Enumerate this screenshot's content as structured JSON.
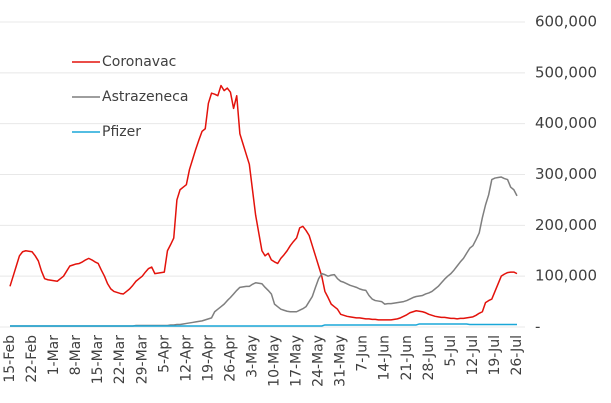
{
  "chart_data": {
    "type": "line",
    "categories": [
      "15-Feb",
      null,
      null,
      null,
      null,
      null,
      null,
      "22-Feb",
      null,
      null,
      null,
      null,
      null,
      null,
      "1-Mar",
      null,
      null,
      null,
      null,
      null,
      null,
      "8-Mar",
      null,
      null,
      null,
      null,
      null,
      null,
      "15-Mar",
      null,
      null,
      null,
      null,
      null,
      null,
      "22-Mar",
      null,
      null,
      null,
      null,
      null,
      null,
      "29-Mar",
      null,
      null,
      null,
      null,
      null,
      null,
      "5-Apr",
      null,
      null,
      null,
      null,
      null,
      null,
      "12-Apr",
      null,
      null,
      null,
      null,
      null,
      null,
      "19-Apr",
      null,
      null,
      null,
      null,
      null,
      null,
      "26-Apr",
      null,
      null,
      null,
      null,
      null,
      null,
      "3-May",
      null,
      null,
      null,
      null,
      null,
      null,
      "10-May",
      null,
      null,
      null,
      null,
      null,
      null,
      "17-May",
      null,
      null,
      null,
      null,
      null,
      null,
      "24-May",
      null,
      null,
      null,
      null,
      null,
      null,
      "31-May",
      null,
      null,
      null,
      null,
      null,
      null,
      "7-Jun",
      null,
      null,
      null,
      null,
      null,
      null,
      "14-Jun",
      null,
      null,
      null,
      null,
      null,
      null,
      "21-Jun",
      null,
      null,
      null,
      null,
      null,
      null,
      "28-Jun",
      null,
      null,
      null,
      null,
      null,
      null,
      "5-Jul",
      null,
      null,
      null,
      null,
      null,
      null,
      "12-Jul",
      null,
      null,
      null,
      null,
      null,
      null,
      "19-Jul",
      null,
      null,
      null,
      null,
      null,
      null,
      "26-Jul"
    ],
    "series": [
      {
        "name": "Coronavac",
        "color": "#e3120b",
        "values": [
          80000,
          100000,
          120000,
          140000,
          148000,
          150000,
          149000,
          148000,
          140000,
          130000,
          110000,
          95000,
          93000,
          92000,
          91000,
          90000,
          95000,
          100000,
          110000,
          120000,
          122000,
          124000,
          125000,
          128000,
          132000,
          135000,
          132000,
          128000,
          125000,
          112000,
          100000,
          85000,
          75000,
          70000,
          68000,
          66000,
          65000,
          70000,
          75000,
          82000,
          90000,
          95000,
          100000,
          108000,
          115000,
          118000,
          105000,
          106000,
          107000,
          108000,
          150000,
          162000,
          175000,
          250000,
          270000,
          275000,
          280000,
          310000,
          330000,
          350000,
          368000,
          385000,
          390000,
          440000,
          460000,
          458000,
          455000,
          475000,
          465000,
          470000,
          462000,
          430000,
          455000,
          380000,
          360000,
          340000,
          320000,
          270000,
          220000,
          185000,
          150000,
          140000,
          145000,
          132000,
          128000,
          125000,
          135000,
          142000,
          150000,
          160000,
          168000,
          175000,
          195000,
          198000,
          190000,
          180000,
          160000,
          140000,
          120000,
          100000,
          70000,
          58000,
          45000,
          40000,
          35000,
          25000,
          23000,
          21000,
          20000,
          19000,
          18000,
          18000,
          17000,
          16000,
          16000,
          15000,
          15000,
          14000,
          14000,
          14000,
          14000,
          14000,
          15000,
          16000,
          18000,
          21000,
          24000,
          28000,
          30000,
          32000,
          31000,
          30000,
          28000,
          25000,
          23000,
          21000,
          20000,
          19000,
          19000,
          18000,
          17000,
          17000,
          16000,
          17000,
          17000,
          18000,
          19000,
          20000,
          23000,
          27000,
          30000,
          48000,
          52000,
          55000,
          70000,
          85000,
          100000,
          104000,
          107000,
          108000,
          108000,
          105000
        ]
      },
      {
        "name": "Astrazeneca",
        "color": "#7f7f7f",
        "values": [
          2000,
          2000,
          2000,
          2000,
          2000,
          2000,
          2000,
          2000,
          2000,
          2000,
          2000,
          2000,
          2000,
          2000,
          2000,
          2000,
          2000,
          2000,
          2000,
          2000,
          2000,
          2000,
          2000,
          2000,
          2000,
          2000,
          2000,
          2000,
          2000,
          2000,
          2000,
          2000,
          2000,
          2000,
          2000,
          2000,
          2000,
          2000,
          2000,
          2000,
          3000,
          3000,
          3000,
          3000,
          3000,
          3000,
          3000,
          3000,
          3000,
          3000,
          3000,
          4000,
          4000,
          5000,
          5000,
          6000,
          7000,
          8000,
          9000,
          10000,
          11000,
          12000,
          14000,
          16000,
          18000,
          30000,
          35000,
          40000,
          45000,
          52000,
          58000,
          65000,
          72000,
          78000,
          79000,
          80000,
          80000,
          84000,
          87000,
          86000,
          85000,
          78000,
          72000,
          65000,
          45000,
          40000,
          35000,
          33000,
          31000,
          30000,
          30000,
          30000,
          33000,
          36000,
          40000,
          50000,
          60000,
          78000,
          95000,
          105000,
          103000,
          100000,
          102000,
          103000,
          95000,
          90000,
          88000,
          85000,
          82000,
          80000,
          78000,
          75000,
          73000,
          72000,
          62000,
          55000,
          52000,
          51000,
          50000,
          45000,
          46000,
          46000,
          47000,
          48000,
          49000,
          50000,
          52000,
          55000,
          58000,
          60000,
          61000,
          62000,
          65000,
          67000,
          70000,
          75000,
          80000,
          87000,
          94000,
          100000,
          105000,
          112000,
          120000,
          128000,
          135000,
          145000,
          155000,
          160000,
          172000,
          185000,
          215000,
          240000,
          260000,
          290000,
          293000,
          294000,
          295000,
          292000,
          290000,
          275000,
          270000,
          258000
        ]
      },
      {
        "name": "Pfizer",
        "color": "#1aa7d8",
        "values": [
          2000,
          2000,
          2000,
          2000,
          2000,
          2000,
          2000,
          2000,
          2000,
          2000,
          2000,
          2000,
          2000,
          2000,
          2000,
          2000,
          2000,
          2000,
          2000,
          2000,
          2000,
          2000,
          2000,
          2000,
          2000,
          2000,
          2000,
          2000,
          2000,
          2000,
          2000,
          2000,
          2000,
          2000,
          2000,
          2000,
          2000,
          2000,
          2000,
          2000,
          2000,
          2000,
          2000,
          2000,
          2000,
          2000,
          2000,
          2000,
          2000,
          2000,
          2000,
          2000,
          2000,
          2000,
          2000,
          2000,
          2000,
          2000,
          2000,
          2000,
          2000,
          2000,
          2000,
          2000,
          2000,
          2000,
          2000,
          2000,
          2000,
          2000,
          2000,
          2000,
          2000,
          2000,
          2000,
          2000,
          2000,
          2000,
          2000,
          2000,
          2000,
          2000,
          2000,
          2000,
          2000,
          2000,
          2000,
          2000,
          2000,
          2000,
          2000,
          2000,
          2000,
          2000,
          2000,
          2000,
          2000,
          2000,
          2000,
          2000,
          4000,
          4000,
          4000,
          4000,
          4000,
          4000,
          4000,
          4000,
          4000,
          4000,
          4000,
          4000,
          4000,
          4000,
          4000,
          4000,
          4000,
          4000,
          4000,
          4000,
          4000,
          4000,
          4000,
          4000,
          4000,
          4000,
          4000,
          4000,
          4000,
          4000,
          6000,
          6000,
          6000,
          6000,
          6000,
          6000,
          6000,
          6000,
          6000,
          6000,
          6000,
          6000,
          6000,
          6000,
          6000,
          6000,
          5000,
          5000,
          5000,
          5000,
          5000,
          5000,
          5000,
          5000,
          5000,
          5000,
          5000,
          5000,
          5000,
          5000,
          5000,
          5000
        ]
      }
    ],
    "ylim": [
      0,
      600000
    ],
    "yticks": [
      {
        "value": 0,
        "label": "-"
      },
      {
        "value": 100000,
        "label": "100,000"
      },
      {
        "value": 200000,
        "label": "200,000"
      },
      {
        "value": 300000,
        "label": "300,000"
      },
      {
        "value": 400000,
        "label": "400,000"
      },
      {
        "value": 500000,
        "label": "500,000"
      },
      {
        "value": 600000,
        "label": "600,000"
      }
    ],
    "grid": true
  }
}
